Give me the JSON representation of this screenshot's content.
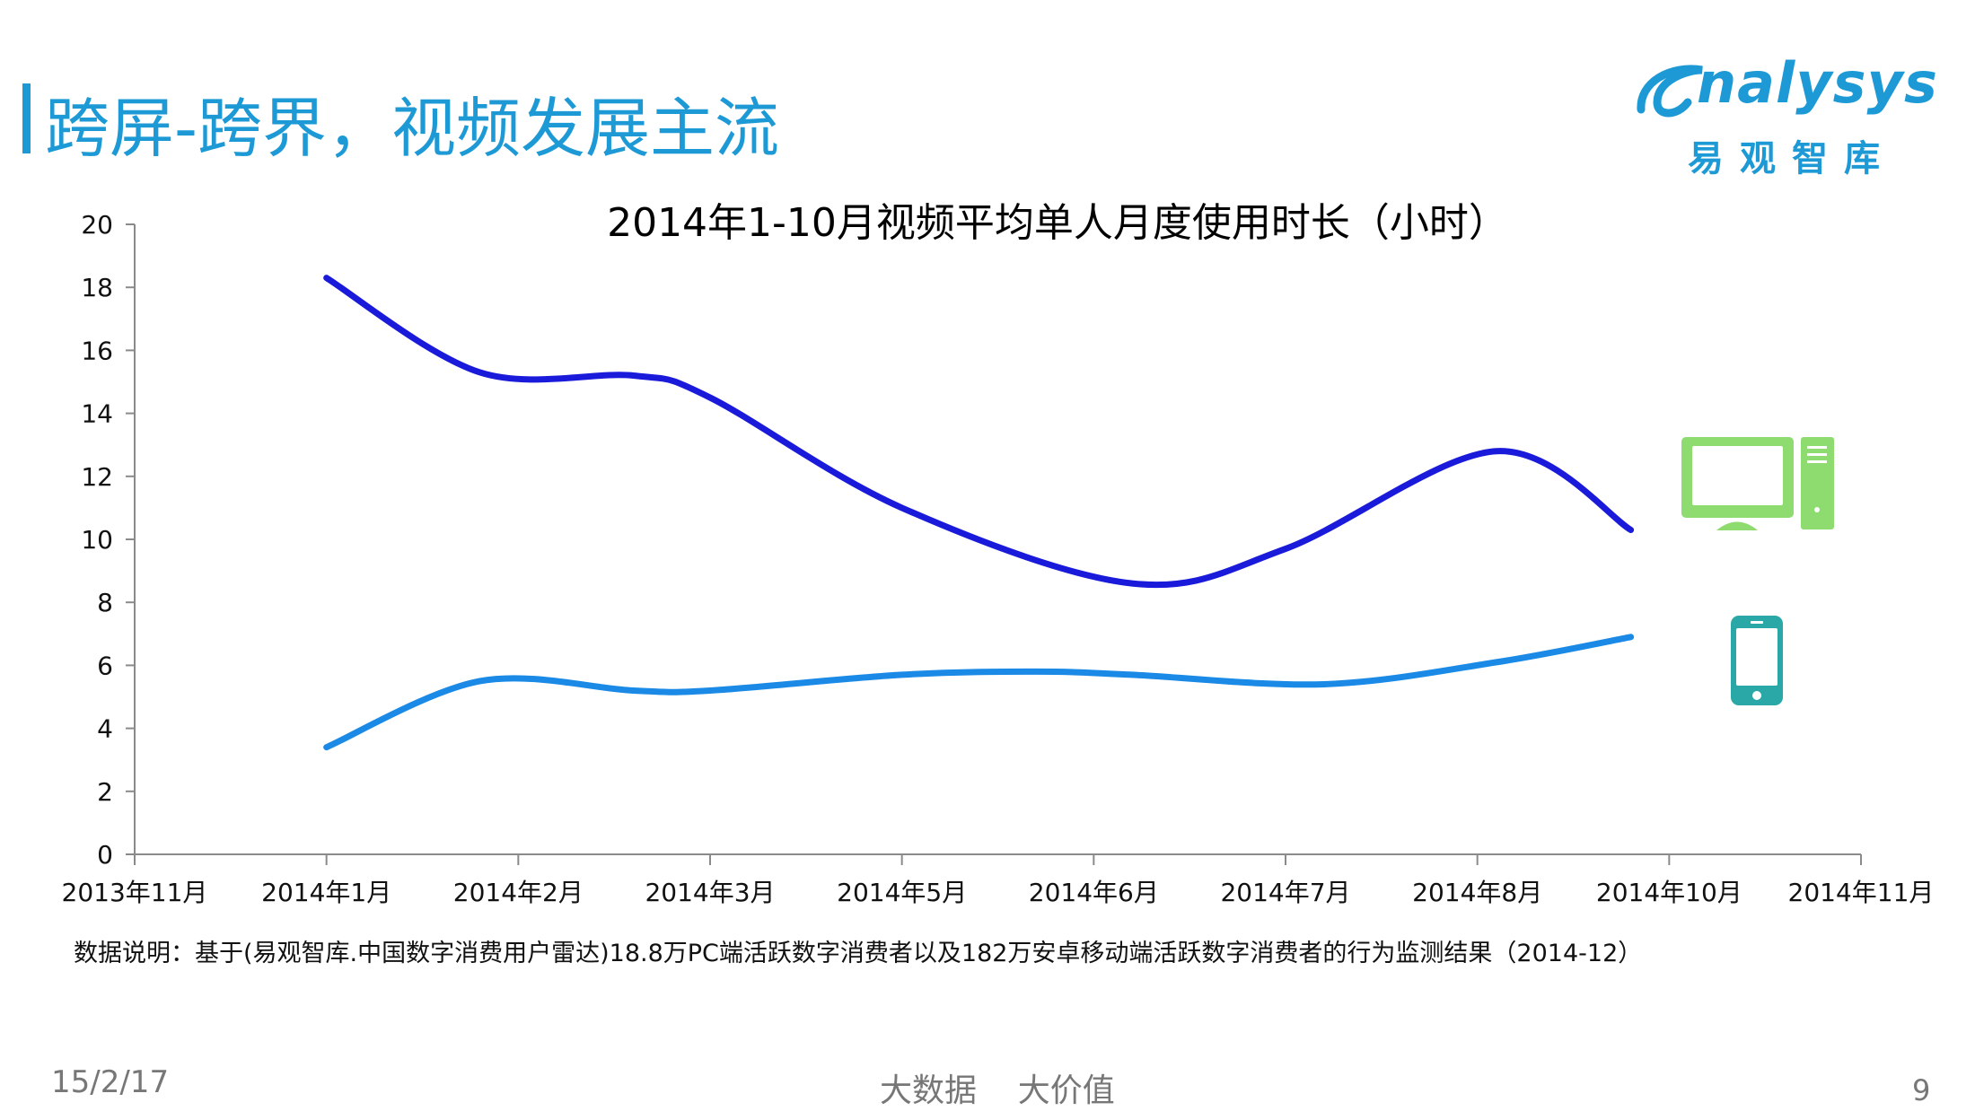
{
  "slide": {
    "title": "跨屏-跨界，视频发展主流",
    "logo_text": "nalysys",
    "logo_cn": "易观智库",
    "note": "数据说明：基于(易观智库.中国数字消费用户雷达)18.8万PC端活跃数字消费者以及182万安卓移动端活跃数字消费者的行为监测结果（2014-12）",
    "footer_date": "15/2/17",
    "footer_center": "大数据    大价值",
    "page_number": "9"
  },
  "chart_data": {
    "type": "line",
    "title": "2014年1-10月视频平均单人月度使用时长（小时）",
    "categories": [
      "2013年11月",
      "2014年1月",
      "2014年2月",
      "2014年3月",
      "2014年5月",
      "2014年6月",
      "2014年7月",
      "2014年8月",
      "2014年10月",
      "2014年11月"
    ],
    "ylim": [
      0,
      20
    ],
    "yticks": [
      0,
      2,
      4,
      6,
      8,
      10,
      12,
      14,
      16,
      18,
      20
    ],
    "grid": false,
    "legend": "icons-right",
    "series": [
      {
        "icon": "desktop-computer-icon",
        "color": "#1a1adb",
        "points": [
          [
            1,
            18.3
          ],
          [
            1.8,
            15.3
          ],
          [
            2.6,
            15.2
          ],
          [
            3.0,
            14.5
          ],
          [
            4.0,
            11.0
          ],
          [
            5.2,
            8.6
          ],
          [
            6.0,
            9.7
          ],
          [
            7.1,
            12.8
          ],
          [
            7.8,
            10.3
          ]
        ]
      },
      {
        "icon": "smartphone-icon",
        "color": "#1a8ae6",
        "points": [
          [
            1,
            3.4
          ],
          [
            1.8,
            5.5
          ],
          [
            2.6,
            5.2
          ],
          [
            3.0,
            5.2
          ],
          [
            4.0,
            5.7
          ],
          [
            4.7,
            5.8
          ],
          [
            5.2,
            5.7
          ],
          [
            6.2,
            5.4
          ],
          [
            7.1,
            6.1
          ],
          [
            7.8,
            6.9
          ]
        ]
      }
    ]
  }
}
